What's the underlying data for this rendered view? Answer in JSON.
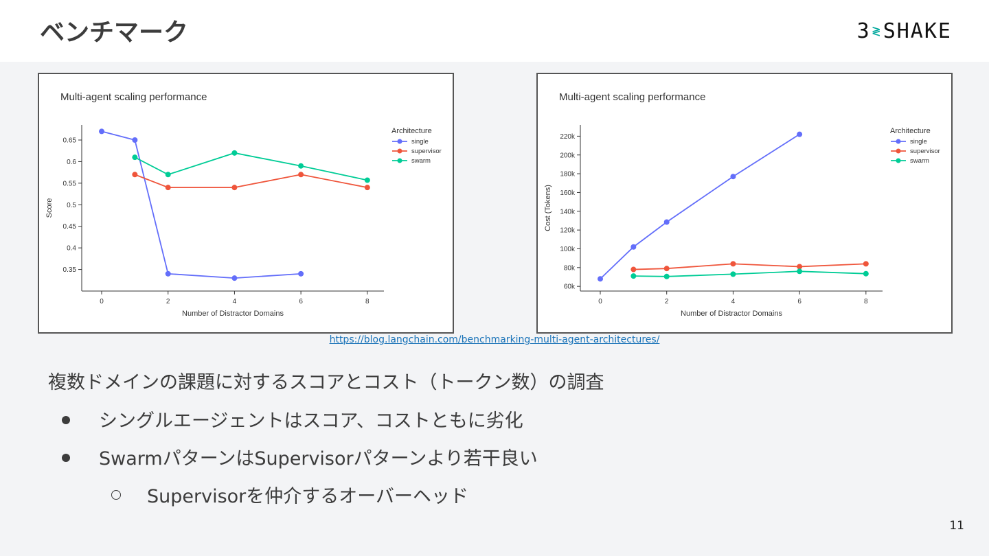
{
  "slide": {
    "title": "ベンチマーク",
    "logo_left": "3",
    "logo_mark": "≷",
    "logo_right": "SHAKE",
    "source_url": "https://blog.langchain.com/benchmarking-multi-agent-architectures/",
    "lead": "複数ドメインの課題に対するスコアとコスト（トークン数）の調査",
    "bullets": [
      "シングルエージェントはスコア、コストともに劣化",
      "SwarmパターンはSupervisorパターンより若干良い"
    ],
    "sub_bullet": "Supervisorを仲介するオーバーヘッド",
    "page_number": "11"
  },
  "chart_data": [
    {
      "type": "line",
      "title": "Multi-agent scaling performance",
      "xlabel": "Number of Distractor Domains",
      "ylabel": "Score",
      "xticks": [
        0,
        2,
        4,
        6,
        8
      ],
      "yticks": [
        0.35,
        0.4,
        0.45,
        0.5,
        0.55,
        0.6,
        0.65
      ],
      "ytick_labels": [
        "0.35",
        "0.4",
        "0.45",
        "0.5",
        "0.55",
        "0.6",
        "0.65"
      ],
      "xlim": [
        -0.6,
        8.5
      ],
      "ylim": [
        0.3,
        0.685
      ],
      "legend_title": "Architecture",
      "legend_position": "top-right",
      "series": [
        {
          "name": "single",
          "color": "#636efa",
          "x": [
            0,
            1,
            2,
            4,
            6
          ],
          "y": [
            0.67,
            0.65,
            0.34,
            0.33,
            0.34
          ]
        },
        {
          "name": "supervisor",
          "color": "#ef553b",
          "x": [
            1,
            2,
            4,
            6,
            8
          ],
          "y": [
            0.57,
            0.54,
            0.54,
            0.57,
            0.54
          ]
        },
        {
          "name": "swarm",
          "color": "#00cc96",
          "x": [
            1,
            2,
            4,
            6,
            8
          ],
          "y": [
            0.61,
            0.57,
            0.62,
            0.59,
            0.557
          ]
        }
      ]
    },
    {
      "type": "line",
      "title": "Multi-agent scaling performance",
      "xlabel": "Number of Distractor Domains",
      "ylabel": "Cost (Tokens)",
      "xticks": [
        0,
        2,
        4,
        6,
        8
      ],
      "yticks": [
        60000,
        80000,
        100000,
        120000,
        140000,
        160000,
        180000,
        200000,
        220000
      ],
      "ytick_labels": [
        "60k",
        "80k",
        "100k",
        "120k",
        "140k",
        "160k",
        "180k",
        "200k",
        "220k"
      ],
      "xlim": [
        -0.6,
        8.5
      ],
      "ylim": [
        55000,
        232000
      ],
      "legend_title": "Architecture",
      "legend_position": "top-right",
      "series": [
        {
          "name": "single",
          "color": "#636efa",
          "x": [
            0,
            1,
            2,
            4,
            6
          ],
          "y": [
            68000,
            102000,
            128500,
            177000,
            222000
          ]
        },
        {
          "name": "supervisor",
          "color": "#ef553b",
          "x": [
            1,
            2,
            4,
            6,
            8
          ],
          "y": [
            78000,
            79000,
            84000,
            81000,
            84000
          ]
        },
        {
          "name": "swarm",
          "color": "#00cc96",
          "x": [
            1,
            2,
            4,
            6,
            8
          ],
          "y": [
            71000,
            70500,
            73000,
            76000,
            73500
          ]
        }
      ]
    }
  ]
}
